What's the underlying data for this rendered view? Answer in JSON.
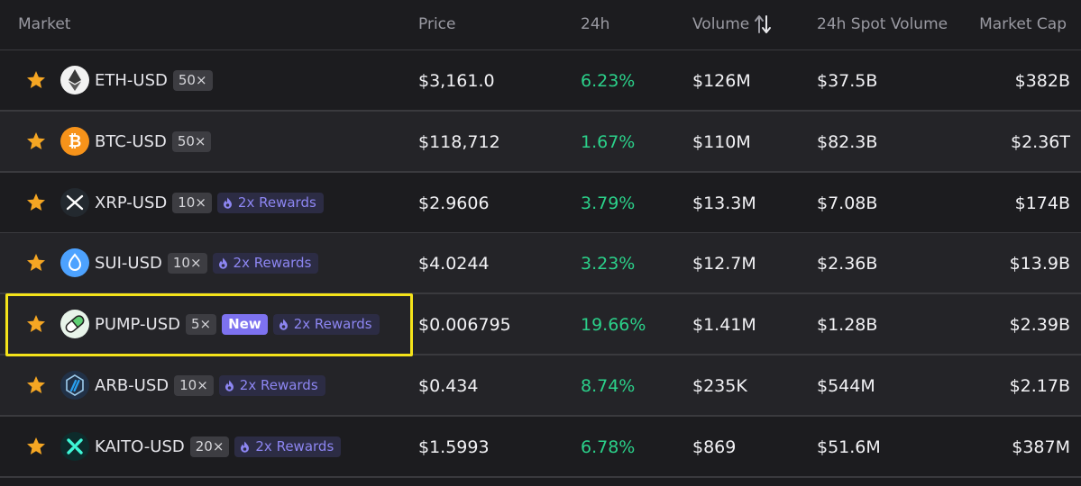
{
  "columns": {
    "market": "Market",
    "price": "Price",
    "change": "24h",
    "volume": "Volume",
    "spot_volume": "24h Spot Volume",
    "market_cap": "Market Cap"
  },
  "rows": [
    {
      "symbol": "ETH-USD",
      "leverage": "50×",
      "is_new": false,
      "rewards": "",
      "price": "$3,161.0",
      "change": "6.23%",
      "volume": "$126M",
      "spot_volume": "$37.5B",
      "market_cap": "$382B",
      "icon": "eth-icon"
    },
    {
      "symbol": "BTC-USD",
      "leverage": "50×",
      "is_new": false,
      "rewards": "",
      "price": "$118,712",
      "change": "1.67%",
      "volume": "$110M",
      "spot_volume": "$82.3B",
      "market_cap": "$2.36T",
      "icon": "btc-icon"
    },
    {
      "symbol": "XRP-USD",
      "leverage": "10×",
      "is_new": false,
      "rewards": "2x Rewards",
      "price": "$2.9606",
      "change": "3.79%",
      "volume": "$13.3M",
      "spot_volume": "$7.08B",
      "market_cap": "$174B",
      "icon": "xrp-icon"
    },
    {
      "symbol": "SUI-USD",
      "leverage": "10×",
      "is_new": false,
      "rewards": "2x Rewards",
      "price": "$4.0244",
      "change": "3.23%",
      "volume": "$12.7M",
      "spot_volume": "$2.36B",
      "market_cap": "$13.9B",
      "icon": "sui-icon"
    },
    {
      "symbol": "PUMP-USD",
      "leverage": "5×",
      "is_new": true,
      "new_label": "New",
      "rewards": "2x Rewards",
      "price": "$0.006795",
      "change": "19.66%",
      "volume": "$1.41M",
      "spot_volume": "$1.28B",
      "market_cap": "$2.39B",
      "icon": "pump-icon"
    },
    {
      "symbol": "ARB-USD",
      "leverage": "10×",
      "is_new": false,
      "rewards": "2x Rewards",
      "price": "$0.434",
      "change": "8.74%",
      "volume": "$235K",
      "spot_volume": "$544M",
      "market_cap": "$2.17B",
      "icon": "arb-icon"
    },
    {
      "symbol": "KAITO-USD",
      "leverage": "20×",
      "is_new": false,
      "rewards": "2x Rewards",
      "price": "$1.5993",
      "change": "6.78%",
      "volume": "$869",
      "spot_volume": "$51.6M",
      "market_cap": "$387M",
      "icon": "kaito-icon"
    }
  ],
  "colors": {
    "background": "#1c1c1f",
    "row_alt": "#242428",
    "positive": "#2bd18a",
    "star": "#f5a623",
    "new_badge": "#7d72f0",
    "rewards_text": "#8d86f2",
    "highlight": "#f5e31a"
  }
}
